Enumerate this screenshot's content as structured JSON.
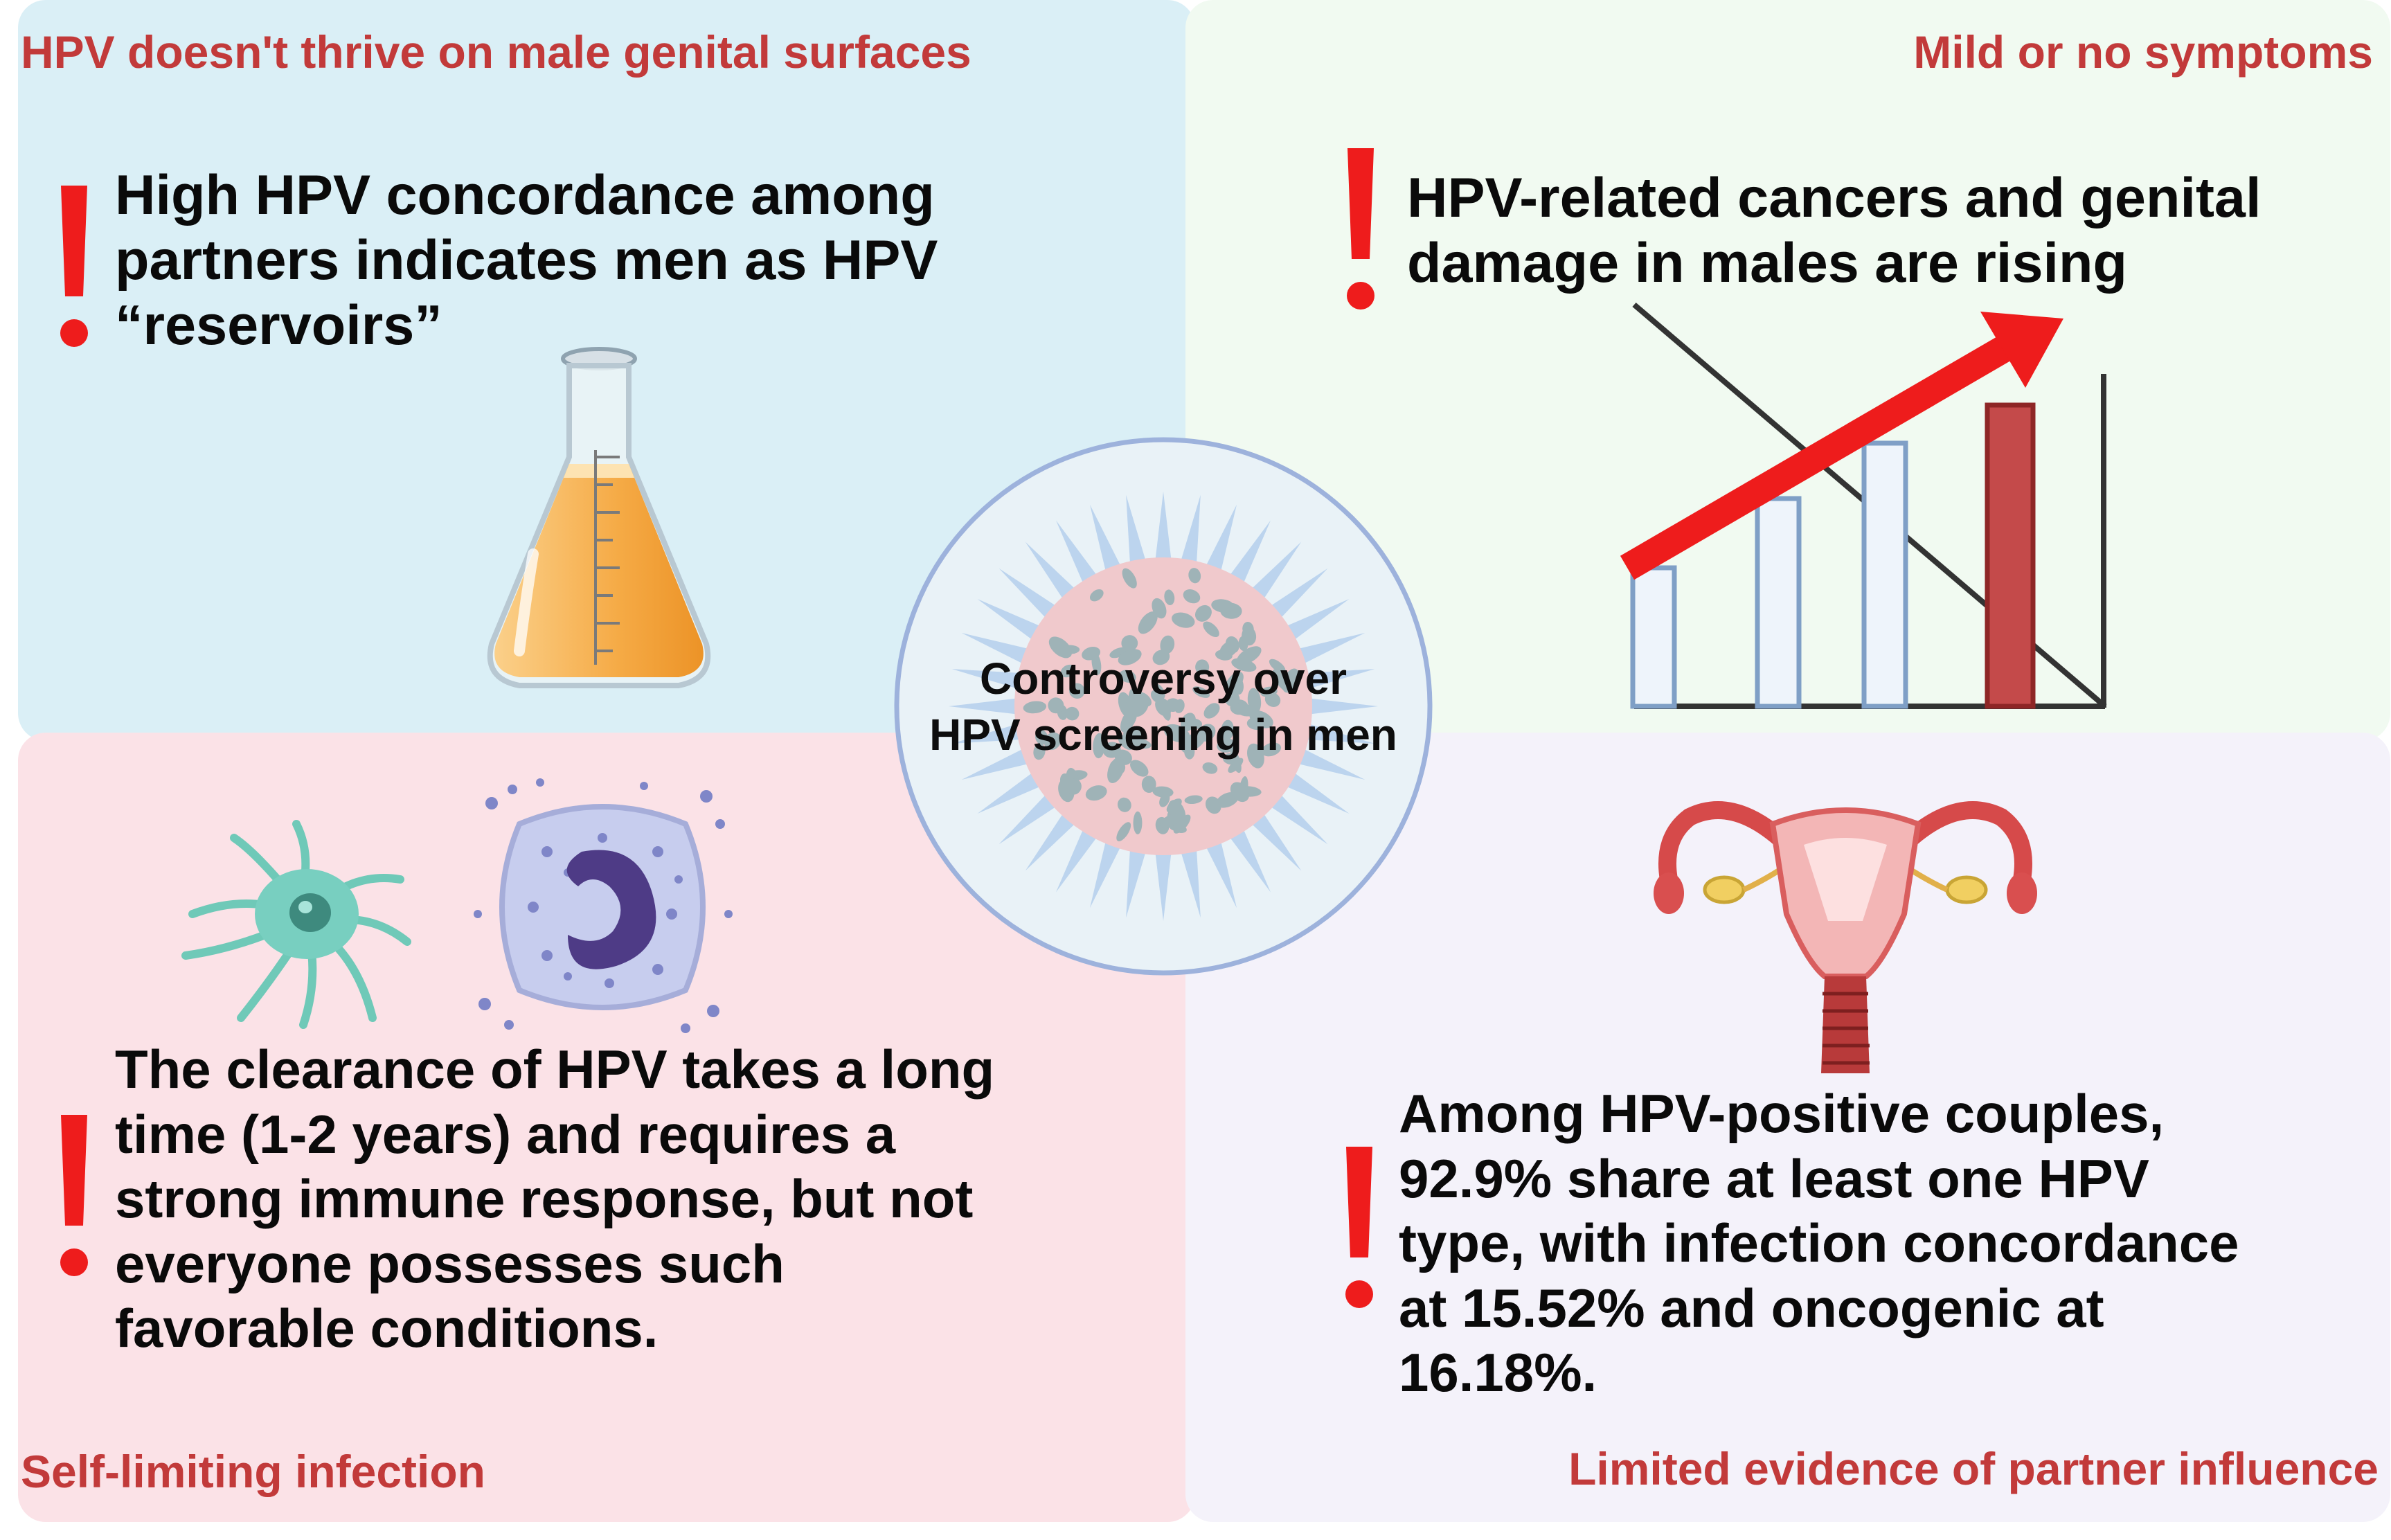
{
  "center": {
    "title_line1": "Controversy over",
    "title_line2": "HPV screening in men",
    "virus_icon": "virus-icon"
  },
  "quadrants": {
    "top_left": {
      "heading": "HPV doesn't thrive on male genital surfaces",
      "lines": [
        "High HPV concordance among",
        "partners indicates men as HPV",
        "“reservoirs”"
      ],
      "icon": "erlenmeyer-flask-icon"
    },
    "top_right": {
      "heading": "Mild or no symptoms",
      "lines": [
        "HPV-related cancers and genital",
        "damage in males are rising"
      ],
      "icon": "rising-bar-chart-icon"
    },
    "bottom_left": {
      "heading": "Self-limiting infection",
      "lines": [
        "The clearance of HPV takes a long",
        "time (1-2 years) and requires a",
        "strong immune response, but not",
        "everyone possesses such",
        "favorable conditions."
      ],
      "icons": [
        "dendritic-cell-icon",
        "neutrophil-icon"
      ]
    },
    "bottom_right": {
      "heading": "Limited evidence of partner influence",
      "lines": [
        "Among HPV-positive couples,",
        "92.9% share at least one HPV",
        "type, with infection concordance",
        "at 15.52% and oncogenic at",
        "16.18%."
      ],
      "icon": "uterus-icon"
    }
  },
  "colors": {
    "heading": "#c23a3a",
    "exclamation": "#ee1c1c",
    "arrow": "#ee1c1c",
    "tl_background": "#daeff6",
    "tr_background": "#f1faf1",
    "bl_background": "#fbe2e7",
    "br_background": "#f4f2fa"
  }
}
